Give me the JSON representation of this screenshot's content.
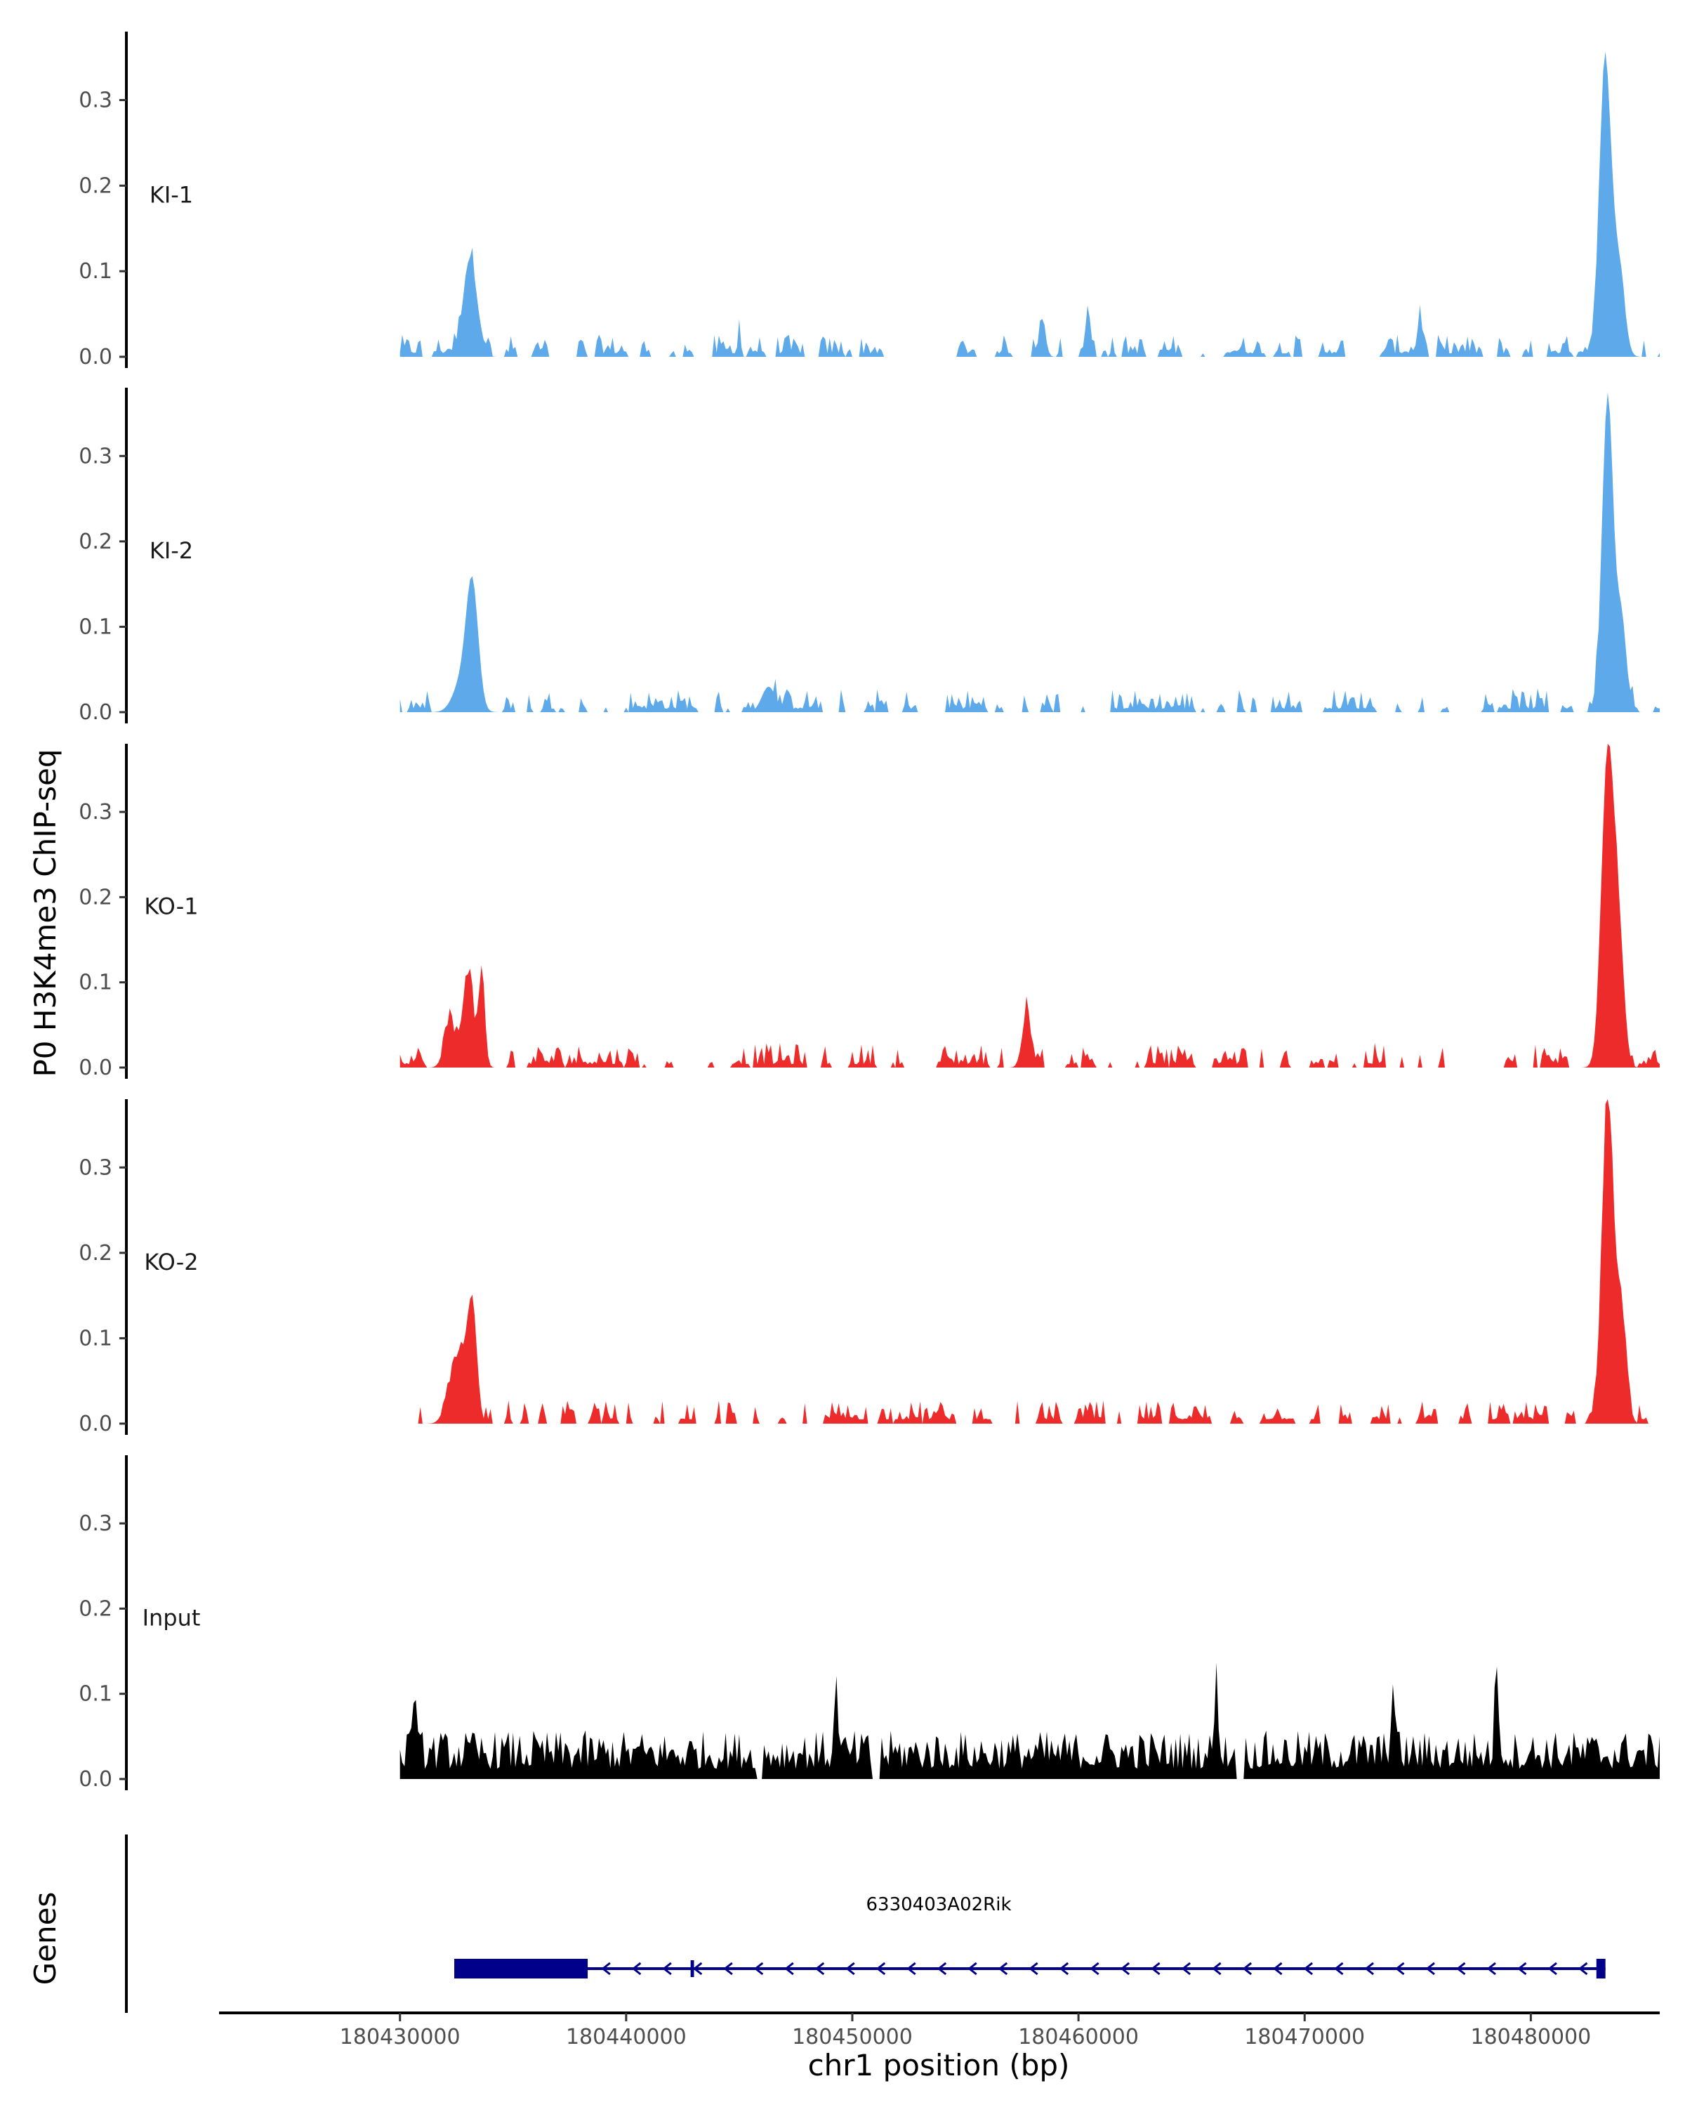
{
  "chart_data": {
    "type": "area",
    "ylabel": "P0 H3K4me3 ChIP-seq",
    "xlabel": "chr1 position (bp)",
    "genes_label": "Genes",
    "xlim": [
      180422000,
      180485700
    ],
    "ylim": [
      0,
      0.38
    ],
    "yticks": [
      0.0,
      0.1,
      0.2,
      0.3
    ],
    "ytick_labels": [
      "0.0",
      "0.1",
      "0.2",
      "0.3"
    ],
    "xticks": [
      180430000,
      180440000,
      180450000,
      180460000,
      180470000,
      180480000
    ],
    "xtick_labels": [
      "180430000",
      "180440000",
      "180450000",
      "180460000",
      "180470000",
      "180480000"
    ],
    "tracks": [
      {
        "label": "KI-1",
        "color": "#5DA9E9",
        "baseline": 0.004,
        "noise": 0.022,
        "gap_prob": 0.45,
        "peaks": [
          [
            180433100,
            0.11,
            300
          ],
          [
            180445000,
            0.044,
            60
          ],
          [
            180458400,
            0.04,
            150
          ],
          [
            180460400,
            0.046,
            120
          ],
          [
            180475100,
            0.046,
            100
          ],
          [
            180483300,
            0.335,
            260
          ],
          [
            180483900,
            0.1,
            250
          ]
        ],
        "gaps": [
          [
            180452100,
            180453600
          ]
        ]
      },
      {
        "label": "KI-2",
        "color": "#5DA9E9",
        "baseline": 0.004,
        "noise": 0.024,
        "gap_prob": 0.35,
        "peaks": [
          [
            180433200,
            0.135,
            260
          ],
          [
            180432800,
            0.04,
            400
          ],
          [
            180446300,
            0.03,
            300
          ],
          [
            180483400,
            0.372,
            240
          ],
          [
            180484000,
            0.11,
            220
          ]
        ],
        "gaps": []
      },
      {
        "label": "KO-1",
        "color": "#EE2B2B",
        "baseline": 0.004,
        "noise": 0.025,
        "gap_prob": 0.4,
        "peaks": [
          [
            180432200,
            0.045,
            250
          ],
          [
            180433000,
            0.105,
            230
          ],
          [
            180433600,
            0.1,
            150
          ],
          [
            180457700,
            0.058,
            200
          ],
          [
            180483400,
            0.366,
            270
          ],
          [
            180483900,
            0.14,
            230
          ]
        ],
        "gaps": [
          [
            180476300,
            180478800
          ]
        ]
      },
      {
        "label": "KO-2",
        "color": "#EE2B2B",
        "baseline": 0.005,
        "noise": 0.022,
        "gap_prob": 0.35,
        "peaks": [
          [
            180432300,
            0.04,
            300
          ],
          [
            180433200,
            0.13,
            200
          ],
          [
            180432800,
            0.05,
            300
          ],
          [
            180483400,
            0.377,
            250
          ],
          [
            180484000,
            0.12,
            230
          ]
        ],
        "gaps": []
      },
      {
        "label": "Input",
        "color": "#000000",
        "baseline": 0.012,
        "noise": 0.045,
        "gap_prob": 0.0,
        "peaks": [
          [
            180430600,
            0.075,
            90
          ],
          [
            180449300,
            0.075,
            90
          ],
          [
            180466100,
            0.085,
            90
          ],
          [
            180473900,
            0.08,
            90
          ],
          [
            180478500,
            0.1,
            90
          ]
        ],
        "gaps": [
          [
            180445800,
            180446000
          ],
          [
            180450900,
            180451200
          ],
          [
            180467000,
            180467300
          ]
        ]
      }
    ],
    "gene": {
      "name": "6330403A02Rik",
      "start": 180432400,
      "end": 180483300,
      "strand": "-",
      "color": "#00008B",
      "thick_exons": [
        [
          180432400,
          180438300
        ],
        [
          180482900,
          180483300
        ]
      ],
      "thin_exons": [
        [
          180442850,
          180443000
        ]
      ]
    }
  }
}
